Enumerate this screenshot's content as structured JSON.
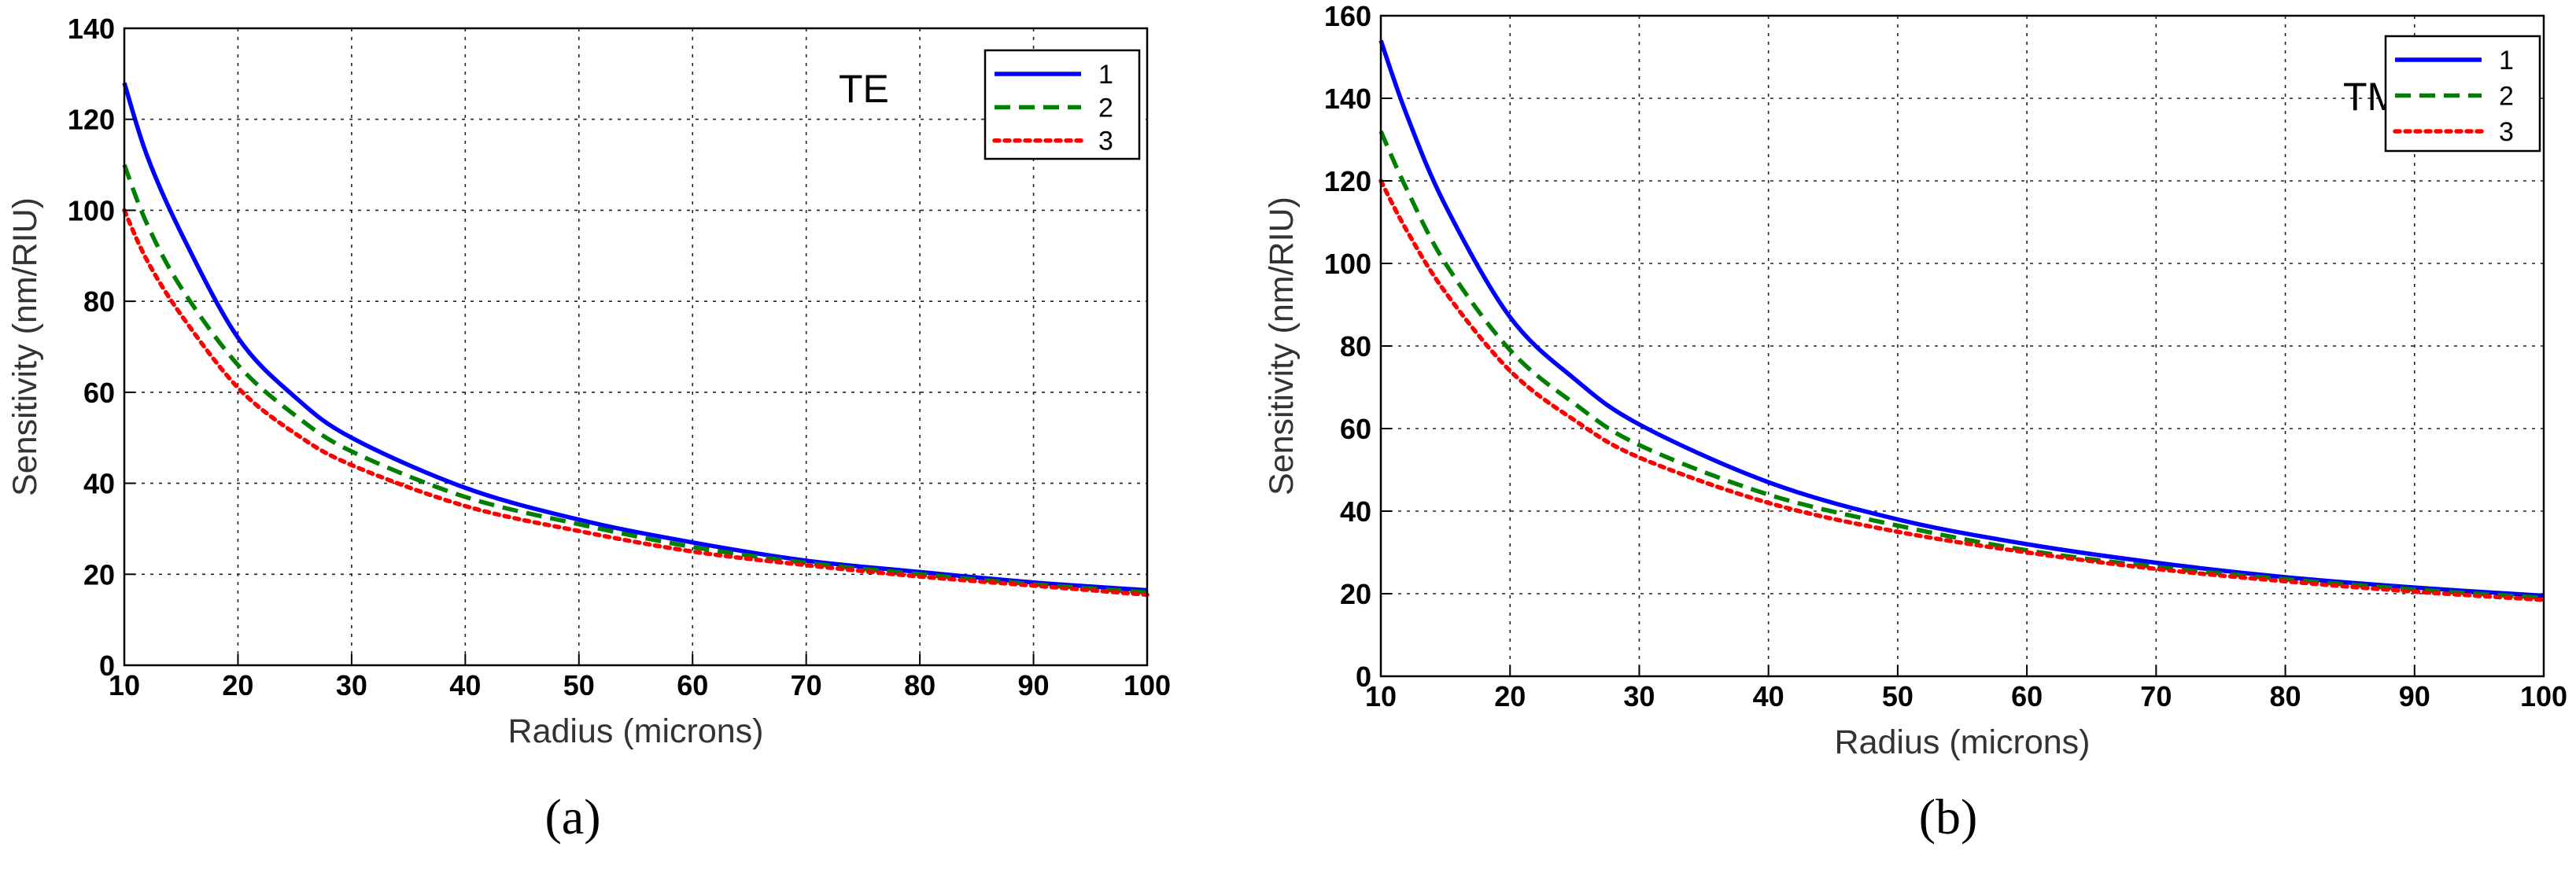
{
  "colors": {
    "series1": "#0000ff",
    "series2": "#008000",
    "series3": "#ff0000"
  },
  "chart_data": [
    {
      "type": "line",
      "panel_caption": "(a)",
      "mode_label": "TE",
      "xlabel": "Radius (microns)",
      "ylabel": "Sensitivity (nm/RIU)",
      "xlim": [
        10,
        100
      ],
      "ylim": [
        0,
        140
      ],
      "xticks": [
        10,
        20,
        30,
        40,
        50,
        60,
        70,
        80,
        90,
        100
      ],
      "yticks": [
        0,
        20,
        40,
        60,
        80,
        100,
        120,
        140
      ],
      "grid": true,
      "legend_position": "top-right",
      "x": [
        10,
        12,
        15,
        20,
        25,
        30,
        40,
        50,
        60,
        70,
        80,
        90,
        100
      ],
      "series": [
        {
          "name": "1",
          "style": "solid",
          "values": [
            128,
            112,
            95,
            72,
            59,
            50,
            39,
            32,
            27,
            23,
            20.5,
            18.2,
            16.5
          ]
        },
        {
          "name": "2",
          "style": "dashed",
          "values": [
            110,
            97,
            83,
            66,
            55,
            47,
            37,
            31,
            26,
            22.5,
            20,
            17.8,
            16
          ]
        },
        {
          "name": "3",
          "style": "dotted",
          "values": [
            100,
            89,
            77,
            61,
            51,
            44,
            35,
            29.5,
            25,
            22,
            19.5,
            17.5,
            15.5
          ]
        }
      ]
    },
    {
      "type": "line",
      "panel_caption": "(b)",
      "mode_label": "TM",
      "xlabel": "Radius (microns)",
      "ylabel": "Sensitivity (nm/RIU)",
      "xlim": [
        10,
        100
      ],
      "ylim": [
        0,
        160
      ],
      "xticks": [
        10,
        20,
        30,
        40,
        50,
        60,
        70,
        80,
        90,
        100
      ],
      "yticks": [
        0,
        20,
        40,
        60,
        80,
        100,
        120,
        140,
        160
      ],
      "grid": true,
      "legend_position": "top-right",
      "x": [
        10,
        12,
        15,
        20,
        25,
        30,
        40,
        50,
        60,
        70,
        80,
        90,
        100
      ],
      "series": [
        {
          "name": "1",
          "style": "solid",
          "values": [
            154,
            136,
            114,
            87,
            72,
            61,
            47,
            38,
            32,
            27.5,
            24,
            21.5,
            19.5
          ]
        },
        {
          "name": "2",
          "style": "dashed",
          "values": [
            132,
            118,
            100,
            79,
            66,
            56,
            44,
            36.5,
            30.5,
            26.5,
            23.5,
            21,
            19
          ]
        },
        {
          "name": "3",
          "style": "dotted",
          "values": [
            120,
            108,
            93,
            74,
            62,
            53,
            42,
            35,
            30,
            26,
            23,
            20.5,
            18.5
          ]
        }
      ]
    }
  ]
}
